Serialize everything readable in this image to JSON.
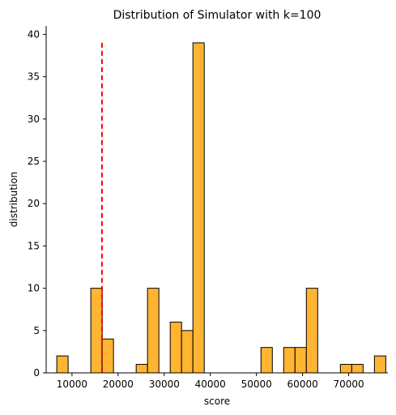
{
  "chart_data": {
    "type": "bar",
    "title": "Distribution of Simulator with k=100",
    "xlabel": "score",
    "ylabel": "distribution",
    "xlim": [
      4400,
      78500
    ],
    "ylim": [
      0,
      41
    ],
    "x_ticks": [
      10000,
      20000,
      30000,
      40000,
      50000,
      60000,
      70000
    ],
    "y_ticks": [
      0,
      5,
      10,
      15,
      20,
      25,
      30,
      35,
      40
    ],
    "bin_width": 2460,
    "bins": [
      {
        "start": 6700,
        "count": 2
      },
      {
        "start": 14080,
        "count": 10
      },
      {
        "start": 16540,
        "count": 4
      },
      {
        "start": 23920,
        "count": 1
      },
      {
        "start": 26380,
        "count": 10
      },
      {
        "start": 31300,
        "count": 6
      },
      {
        "start": 33760,
        "count": 5
      },
      {
        "start": 36220,
        "count": 39
      },
      {
        "start": 50980,
        "count": 3
      },
      {
        "start": 55900,
        "count": 3
      },
      {
        "start": 58360,
        "count": 3
      },
      {
        "start": 60820,
        "count": 10
      },
      {
        "start": 68200,
        "count": 1
      },
      {
        "start": 70660,
        "count": 1
      },
      {
        "start": 75580,
        "count": 2
      }
    ],
    "reference_line": {
      "x": 16500,
      "y_top": 39,
      "color": "#ff0000",
      "style": "dashed"
    },
    "bar_color": "#ffb432",
    "edge_color": "#000000",
    "grid": false,
    "legend": "none"
  }
}
